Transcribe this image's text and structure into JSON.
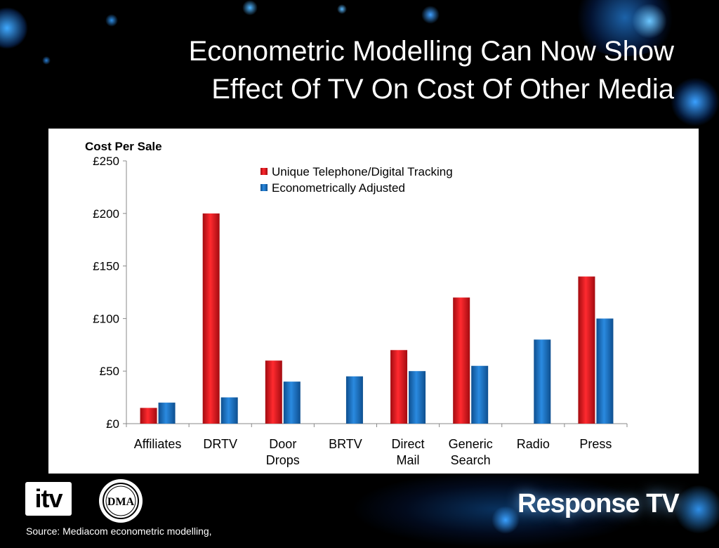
{
  "slide": {
    "title_line1": "Econometric Modelling Can Now Show",
    "title_line2": "Effect Of TV On Cost Of Other Media",
    "source": "Source: Mediacom econometric modelling,",
    "logos": {
      "itv": "itv",
      "dma": "DMA",
      "response_tv": "Response TV"
    }
  },
  "colors": {
    "background": "#000000",
    "panel": "#ffffff",
    "series_red": "#e8141b",
    "series_blue": "#1a73c4"
  },
  "chart_data": {
    "type": "bar",
    "title": "Cost Per Sale",
    "xlabel": "",
    "ylabel": "",
    "ylim": [
      0,
      250
    ],
    "yticks": [
      "£0",
      "£50",
      "£100",
      "£150",
      "£200",
      "£250"
    ],
    "ytick_values": [
      0,
      50,
      100,
      150,
      200,
      250
    ],
    "categories": [
      [
        "Affiliates"
      ],
      [
        "DRTV"
      ],
      [
        "Door",
        "Drops"
      ],
      [
        "BRTV"
      ],
      [
        "Direct",
        "Mail"
      ],
      [
        "Generic",
        "Search"
      ],
      [
        "Radio"
      ],
      [
        "Press"
      ]
    ],
    "series": [
      {
        "name": "Unique Telephone/Digital Tracking",
        "color": "#e8141b",
        "values": [
          15,
          200,
          60,
          null,
          70,
          120,
          null,
          140
        ]
      },
      {
        "name": "Econometrically Adjusted",
        "color": "#1a73c4",
        "values": [
          20,
          25,
          40,
          45,
          50,
          55,
          80,
          100
        ]
      }
    ],
    "legend": "top-center",
    "grid": false
  }
}
